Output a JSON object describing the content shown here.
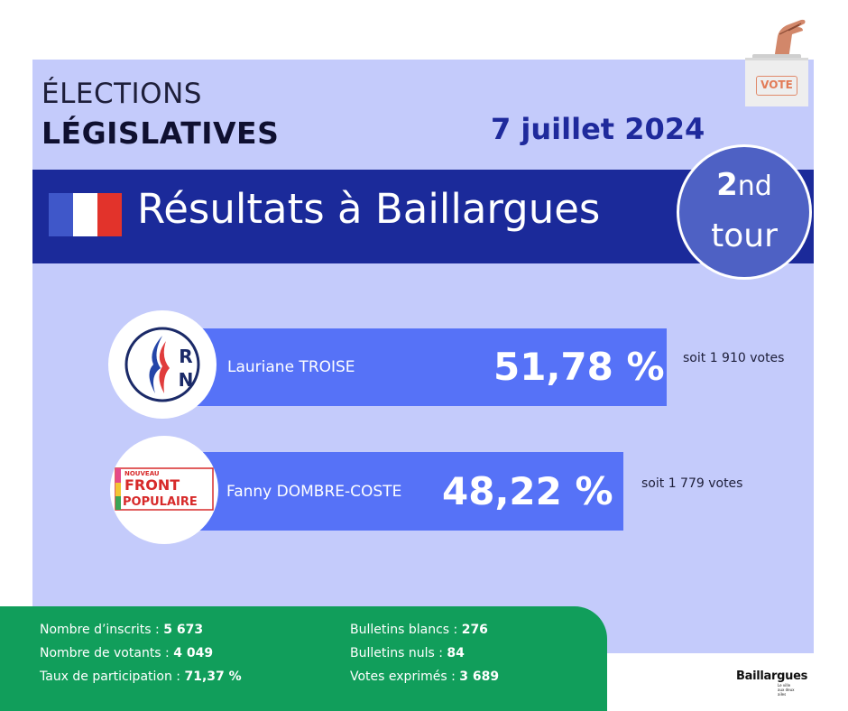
{
  "header": {
    "title_line1": "ÉLECTIONS",
    "title_line2": "LÉGISLATIVES",
    "date": "7 juillet 2024"
  },
  "banner": {
    "title": "Résultats à Baillargues",
    "round_number": "2",
    "round_suffix": "nd",
    "round_word": "tour"
  },
  "ballot_box": {
    "label": "VOTE"
  },
  "candidates": [
    {
      "party_logo": "rn-logo",
      "logo_text_top": "R",
      "logo_text_bottom": "N",
      "name": "Lauriane TROISE",
      "percent": "51,78 %",
      "votes": "soit 1 910 votes"
    },
    {
      "party_logo": "nfp-logo",
      "logo_text_top": "NOUVEAU",
      "logo_text_mid": "FRONT",
      "logo_text_bottom": "POPULAIRE",
      "name": "Fanny DOMBRE-COSTE",
      "percent": "48,22 %",
      "votes": "soit 1 779 votes"
    }
  ],
  "stats": {
    "left": [
      {
        "label": "Nombre d’inscrits : ",
        "value": "5 673"
      },
      {
        "label": "Nombre de votants : ",
        "value": "4 049"
      },
      {
        "label": "Taux de participation : ",
        "value": "71,37 %"
      }
    ],
    "right": [
      {
        "label": "Bulletins blancs : ",
        "value": "276"
      },
      {
        "label": "Bulletins nuls : ",
        "value": "84"
      },
      {
        "label": "Votes exprimés : ",
        "value": "3 689"
      }
    ]
  },
  "city_logo": {
    "name": "Baillargues",
    "tagline_1": "Le ville",
    "tagline_2": "aux deux",
    "tagline_3": "ailes"
  },
  "colors": {
    "panel": "#c4cbfb",
    "banner": "#1b2a9a",
    "bar": "#5672f7",
    "badge": "#4e61c4",
    "stats_box": "#119e5b",
    "date": "#1f2a9c"
  }
}
